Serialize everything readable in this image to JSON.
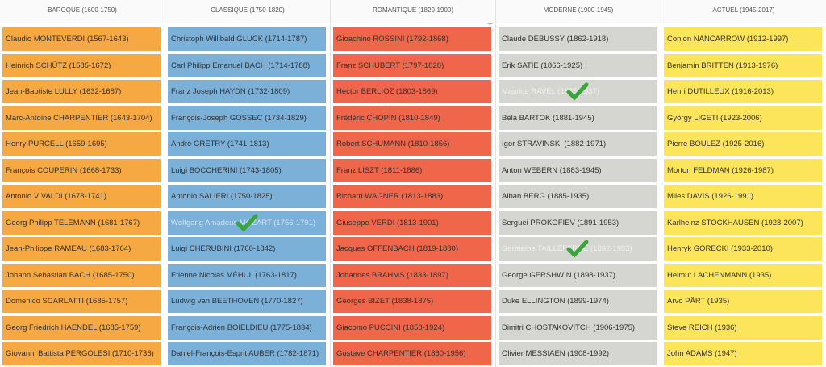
{
  "columns": [
    {
      "header": "BAROQUE (1600-1750)",
      "color": "#f6a843",
      "items": [
        {
          "name": "Claudio MONTEVERDI (1567-1643)"
        },
        {
          "name": "Heinrich SCHÜTZ (1585-1672)"
        },
        {
          "name": "Jean-Baptiste LULLY (1632-1687)"
        },
        {
          "name": "Marc-Antoine CHARPENTIER (1643-1704)"
        },
        {
          "name": "Henry PURCELL (1659-1695)"
        },
        {
          "name": "François COUPERIN (1668-1733)"
        },
        {
          "name": "Antonio VIVALDI (1678-1741)"
        },
        {
          "name": "Georg Philipp TELEMANN (1681-1767)"
        },
        {
          "name": "Jean-Philippe RAMEAU (1683-1764)"
        },
        {
          "name": "Johann Sebastian BACH (1685-1750)"
        },
        {
          "name": "Domenico SCARLATTI (1685-1757)"
        },
        {
          "name": "Georg Friedrich HAENDEL (1685-1759)"
        },
        {
          "name": "Giovanni Battista PERGOLESI (1710-1736)"
        }
      ]
    },
    {
      "header": "CLASSIQUE (1750-1820)",
      "color": "#7bb0d9",
      "items": [
        {
          "name": "Christoph Willibald GLUCK (1714-1787)"
        },
        {
          "name": "Carl Philipp Emanuel BACH (1714-1788)"
        },
        {
          "name": "Franz Joseph HAYDN (1732-1809)"
        },
        {
          "name": "François-Joseph GOSSEC (1734-1829)"
        },
        {
          "name": "André GRÉTRY (1741-1813)"
        },
        {
          "name": "Luigi BOCCHERINI (1743-1805)"
        },
        {
          "name": "Antonio SALIERI (1750-1825)"
        },
        {
          "name": "Wolfgang Amadeus MOZART (1756-1791)",
          "checked": true
        },
        {
          "name": "Luigi CHERUBINI (1760-1842)"
        },
        {
          "name": "Etienne Nicolas MÉHUL (1763-1817)"
        },
        {
          "name": "Ludwig van BEETHOVEN (1770-1827)"
        },
        {
          "name": "François-Adrien BOIELDIEU (1775-1834)"
        },
        {
          "name": "Daniel-François-Esprit AUBER (1782-1871)"
        }
      ]
    },
    {
      "header": "ROMANTIQUE (1820-1900)",
      "color": "#ef664b",
      "items": [
        {
          "name": "Gioachino ROSSINI (1792-1868)"
        },
        {
          "name": "Franz SCHUBERT (1797-1828)"
        },
        {
          "name": "Hector BERLIOZ (1803-1869)"
        },
        {
          "name": "Frédéric CHOPIN (1810-1849)"
        },
        {
          "name": "Robert SCHUMANN (1810-1856)"
        },
        {
          "name": "Franz LISZT (1811-1886)"
        },
        {
          "name": "Richard WAGNER (1813-1883)"
        },
        {
          "name": "Giuseppe VERDI (1813-1901)"
        },
        {
          "name": "Jacques OFFENBACH (1819-1880)"
        },
        {
          "name": "Johannes BRAHMS (1833-1897)"
        },
        {
          "name": "Georges BIZET (1838-1875)"
        },
        {
          "name": "Giacomo PUCCINI (1858-1924)"
        },
        {
          "name": "Gustave CHARPENTIER (1860-1956)"
        }
      ]
    },
    {
      "header": "MODERNE (1900-1945)",
      "color": "#d5d6d1",
      "items": [
        {
          "name": "Claude DEBUSSY (1862-1918)"
        },
        {
          "name": "Erik SATIE (1866-1925)"
        },
        {
          "name": "Maurice RAVEL (1875-1937)",
          "checked": true
        },
        {
          "name": "Béla BARTOK (1881-1945)"
        },
        {
          "name": "Igor STRAVINSKI (1882-1971)"
        },
        {
          "name": "Anton WEBERN (1883-1945)"
        },
        {
          "name": "Alban BERG (1885-1935)"
        },
        {
          "name": "Serguei PROKOFIEV (1891-1953)"
        },
        {
          "name": "Germaine TAILLEFERRE (1892-1983)",
          "checked": true
        },
        {
          "name": "George GERSHWIN (1898-1937)"
        },
        {
          "name": "Duke ELLINGTON (1899-1974)"
        },
        {
          "name": "Dimitri CHOSTAKOVITCH (1906-1975)"
        },
        {
          "name": "Olivier MESSIAEN (1908-1992)"
        }
      ]
    },
    {
      "header": "ACTUEL (1945-2017)",
      "color": "#fce55b",
      "items": [
        {
          "name": "Conlon NANCARROW (1912-1997)"
        },
        {
          "name": "Benjamin BRITTEN (1913-1976)"
        },
        {
          "name": "Henri DUTILLEUX (1916-2013)"
        },
        {
          "name": "György LIGETI (1923-2006)"
        },
        {
          "name": "Pierre BOULEZ (1925-2016)"
        },
        {
          "name": "Morton FELDMAN (1926-1987)"
        },
        {
          "name": "Miles DAVIS (1926-1991)"
        },
        {
          "name": "Karlheinz STOCKHAUSEN (1928-2007)"
        },
        {
          "name": "Henryk GORECKI (1933-2010)"
        },
        {
          "name": "Helmut LACHENMANN (1935)"
        },
        {
          "name": "Arvo PÄRT (1935)"
        },
        {
          "name": "Steve REICH (1936)"
        },
        {
          "name": "John ADAMS (1947)"
        }
      ]
    }
  ]
}
